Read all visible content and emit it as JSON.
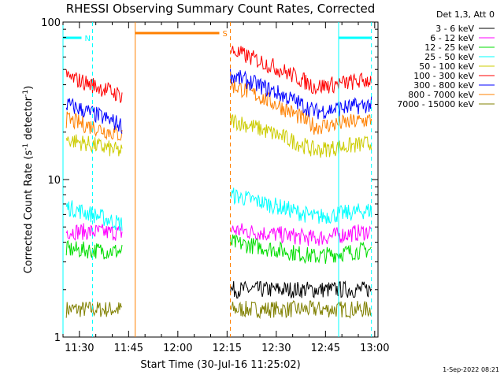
{
  "chart_data": {
    "type": "line",
    "title": "RHESSI Observing Summary Count Rates, Corrected",
    "xlabel": "Start Time (30-Jul-16 11:25:02)",
    "ylabel_main": "Corrected Count Rate (s",
    "ylabel_sup1": "-1",
    "ylabel_mid": " detector",
    "ylabel_sup2": "-1",
    "ylabel_end": ")",
    "ylabel": "Corrected Count Rate (s^-1 detector^-1)",
    "yscale": "log",
    "ylim": [
      1,
      100
    ],
    "xlim": [
      "11:25",
      "13:01"
    ],
    "x_ticks": [
      "11:30",
      "11:45",
      "12:00",
      "12:15",
      "12:30",
      "12:45",
      "13:00"
    ],
    "y_ticks": [
      {
        "value": 1,
        "label": "1"
      },
      {
        "value": 10,
        "label": "10"
      },
      {
        "value": 100,
        "label": "100"
      }
    ],
    "legend_header": "Det 1,3, Att 0",
    "legend_position": "right",
    "series": [
      {
        "name": "3 - 6 keV",
        "color": "#000000",
        "segments": [
          {
            "x": [
              "12:16",
              "12:59"
            ],
            "y": [
              2.0,
              2.0
            ]
          }
        ]
      },
      {
        "name": "6 - 12 keV",
        "color": "#ff00ff",
        "segments": [
          {
            "x": [
              "11:26",
              "11:43"
            ],
            "y": [
              4.7,
              4.6
            ]
          },
          {
            "x": [
              "12:16",
              "12:59"
            ],
            "y": [
              4.8,
              4.7
            ]
          }
        ]
      },
      {
        "name": "12 - 25 keV",
        "color": "#00dd00",
        "segments": [
          {
            "x": [
              "11:26",
              "11:43"
            ],
            "y": [
              3.6,
              3.5
            ]
          },
          {
            "x": [
              "12:16",
              "12:59"
            ],
            "y": [
              4.0,
              3.6
            ]
          }
        ]
      },
      {
        "name": "25 - 50 keV",
        "color": "#00ffff",
        "segments": [
          {
            "x": [
              "11:26",
              "11:43"
            ],
            "y": [
              6.7,
              5.2
            ]
          },
          {
            "x": [
              "12:16",
              "12:59"
            ],
            "y": [
              8.0,
              6.4
            ]
          }
        ]
      },
      {
        "name": "50 - 100 keV",
        "color": "#cccc00",
        "segments": [
          {
            "x": [
              "11:26",
              "11:43"
            ],
            "y": [
              18,
              15
            ]
          },
          {
            "x": [
              "12:16",
              "12:59"
            ],
            "y": [
              24,
              17
            ]
          }
        ]
      },
      {
        "name": "100 - 300 keV",
        "color": "#ff0000",
        "segments": [
          {
            "x": [
              "11:26",
              "11:43"
            ],
            "y": [
              45,
              34
            ]
          },
          {
            "x": [
              "12:16",
              "12:59"
            ],
            "y": [
              66,
              43
            ]
          }
        ]
      },
      {
        "name": "300 - 800 keV",
        "color": "#0000ff",
        "segments": [
          {
            "x": [
              "11:26",
              "11:43"
            ],
            "y": [
              30,
              22
            ]
          },
          {
            "x": [
              "12:16",
              "12:59"
            ],
            "y": [
              46,
              30
            ]
          }
        ]
      },
      {
        "name": "800 - 7000 keV",
        "color": "#ff8000",
        "segments": [
          {
            "x": [
              "11:26",
              "11:43"
            ],
            "y": [
              24,
              19
            ]
          },
          {
            "x": [
              "12:16",
              "12:59"
            ],
            "y": [
              40,
              24
            ]
          }
        ]
      },
      {
        "name": "7000 - 15000 keV",
        "color": "#808000",
        "segments": [
          {
            "x": [
              "11:26",
              "11:43"
            ],
            "y": [
              1.5,
              1.5
            ]
          },
          {
            "x": [
              "12:16",
              "12:59"
            ],
            "y": [
              1.5,
              1.5
            ]
          }
        ]
      }
    ],
    "flags": [
      {
        "label": "N",
        "color": "#00ffff",
        "start": "11:25",
        "end": "11:34",
        "line_start": "solid",
        "line_end": "dashed"
      },
      {
        "label": "S",
        "color": "#ff8000",
        "start": "11:47",
        "end": "12:16",
        "line_start": "solid",
        "line_end": "dashed"
      },
      {
        "label": "",
        "color": "#00ffff",
        "start": "12:49",
        "end": "12:59",
        "line_start": "solid",
        "line_end": "dashed"
      }
    ]
  },
  "timestamp": "1-Sep-2022 08:21"
}
